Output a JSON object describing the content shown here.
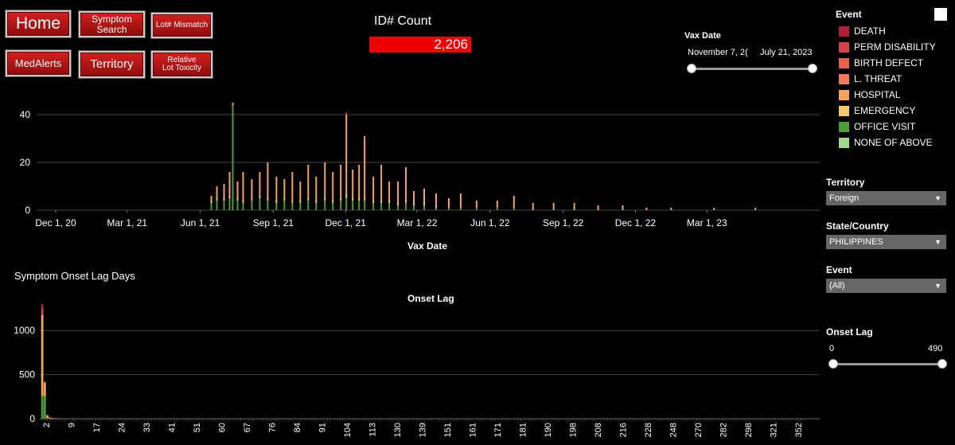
{
  "nav": {
    "home": "Home",
    "symptom_search": "Symptom\nSearch",
    "lot_mismatch": "Lot# Mismatch",
    "medalerts": "MedAlerts",
    "territory": "Territory",
    "relative_lot_toxicity": "Relative\nLot Toxicity"
  },
  "count": {
    "label": "ID# Count",
    "value": "2,206"
  },
  "vax_date_filter": {
    "label": "Vax Date",
    "start": "November 7, 2(",
    "end": "July 21, 2023"
  },
  "legend": {
    "title": "Event",
    "items": [
      {
        "label": "DEATH",
        "color": "#b01f3a"
      },
      {
        "label": "PERM DISABILITY",
        "color": "#d2434b"
      },
      {
        "label": "BIRTH DEFECT",
        "color": "#e8604e"
      },
      {
        "label": "L. THREAT",
        "color": "#f0795f"
      },
      {
        "label": "HOSPITAL",
        "color": "#f5a35e"
      },
      {
        "label": "EMERGENCY",
        "color": "#f3c96d"
      },
      {
        "label": "OFFICE VISIT",
        "color": "#4f9a3a"
      },
      {
        "label": "NONE OF ABOVE",
        "color": "#9fd88f"
      }
    ]
  },
  "filters": {
    "territory": {
      "label": "Territory",
      "value": "Foreign"
    },
    "state_country": {
      "label": "State/Country",
      "value": "PHILIPPINES"
    },
    "event": {
      "label": "Event",
      "value": "(All)"
    },
    "onset_lag": {
      "label": "Onset Lag",
      "min": "0",
      "max": "490"
    }
  },
  "chart_data": [
    {
      "type": "bar",
      "title": "",
      "xlabel": "Vax Date",
      "ylabel": "",
      "ylim": [
        0,
        48
      ],
      "y_ticks": [
        "0",
        "20",
        "40"
      ],
      "x_ticks": [
        "Dec 1, 20",
        "Mar 1, 21",
        "Jun 1, 21",
        "Sep 1, 21",
        "Dec 1, 21",
        "Mar 1, 22",
        "Jun 1, 22",
        "Sep 1, 22",
        "Dec 1, 22",
        "Mar 1, 23"
      ],
      "x_range": [
        "2020-11-07",
        "2023-07-21"
      ],
      "grid": true,
      "stacked": true,
      "series_order": [
        "OFFICE VISIT",
        "EMERGENCY",
        "HOSPITAL",
        "DEATH"
      ],
      "bars": [
        {
          "x": "2021-06-15",
          "values": [
            3,
            1,
            2,
            0
          ]
        },
        {
          "x": "2021-06-22",
          "values": [
            4,
            1,
            5,
            0
          ]
        },
        {
          "x": "2021-07-01",
          "values": [
            4,
            1,
            6,
            0
          ]
        },
        {
          "x": "2021-07-08",
          "values": [
            5,
            1,
            10,
            0
          ]
        },
        {
          "x": "2021-07-12",
          "values": [
            44,
            0,
            1,
            0
          ]
        },
        {
          "x": "2021-07-18",
          "values": [
            4,
            1,
            7,
            0
          ]
        },
        {
          "x": "2021-07-25",
          "values": [
            3,
            1,
            12,
            0
          ]
        },
        {
          "x": "2021-08-05",
          "values": [
            4,
            1,
            8,
            0
          ]
        },
        {
          "x": "2021-08-15",
          "values": [
            5,
            1,
            10,
            0
          ]
        },
        {
          "x": "2021-08-25",
          "values": [
            4,
            1,
            15,
            0
          ]
        },
        {
          "x": "2021-09-05",
          "values": [
            3,
            1,
            10,
            0
          ]
        },
        {
          "x": "2021-09-15",
          "values": [
            4,
            1,
            8,
            0
          ]
        },
        {
          "x": "2021-09-25",
          "values": [
            3,
            1,
            12,
            0
          ]
        },
        {
          "x": "2021-10-05",
          "values": [
            3,
            1,
            8,
            0
          ]
        },
        {
          "x": "2021-10-15",
          "values": [
            4,
            1,
            14,
            0
          ]
        },
        {
          "x": "2021-10-25",
          "values": [
            3,
            1,
            10,
            0
          ]
        },
        {
          "x": "2021-11-05",
          "values": [
            4,
            1,
            15,
            0
          ]
        },
        {
          "x": "2021-11-15",
          "values": [
            3,
            1,
            12,
            0
          ]
        },
        {
          "x": "2021-11-25",
          "values": [
            4,
            1,
            14,
            0
          ]
        },
        {
          "x": "2021-12-02",
          "values": [
            5,
            2,
            33,
            1
          ]
        },
        {
          "x": "2021-12-10",
          "values": [
            4,
            1,
            12,
            0
          ]
        },
        {
          "x": "2021-12-18",
          "values": [
            4,
            1,
            14,
            0
          ]
        },
        {
          "x": "2021-12-25",
          "values": [
            4,
            1,
            26,
            0
          ]
        },
        {
          "x": "2022-01-05",
          "values": [
            3,
            1,
            10,
            0
          ]
        },
        {
          "x": "2022-01-15",
          "values": [
            3,
            1,
            15,
            0
          ]
        },
        {
          "x": "2022-01-25",
          "values": [
            3,
            1,
            8,
            0
          ]
        },
        {
          "x": "2022-02-05",
          "values": [
            2,
            1,
            9,
            0
          ]
        },
        {
          "x": "2022-02-15",
          "values": [
            3,
            1,
            14,
            0
          ]
        },
        {
          "x": "2022-02-25",
          "values": [
            2,
            1,
            5,
            0
          ]
        },
        {
          "x": "2022-03-10",
          "values": [
            2,
            1,
            6,
            0
          ]
        },
        {
          "x": "2022-03-25",
          "values": [
            1,
            1,
            5,
            0
          ]
        },
        {
          "x": "2022-04-10",
          "values": [
            1,
            0,
            4,
            0
          ]
        },
        {
          "x": "2022-04-25",
          "values": [
            1,
            0,
            6,
            0
          ]
        },
        {
          "x": "2022-05-15",
          "values": [
            1,
            0,
            3,
            0
          ]
        },
        {
          "x": "2022-06-10",
          "values": [
            1,
            0,
            3,
            0
          ]
        },
        {
          "x": "2022-07-01",
          "values": [
            1,
            0,
            5,
            0
          ]
        },
        {
          "x": "2022-07-25",
          "values": [
            0,
            0,
            3,
            0
          ]
        },
        {
          "x": "2022-08-20",
          "values": [
            0,
            0,
            3,
            0
          ]
        },
        {
          "x": "2022-09-15",
          "values": [
            0,
            0,
            3,
            0
          ]
        },
        {
          "x": "2022-10-15",
          "values": [
            0,
            0,
            2,
            0
          ]
        },
        {
          "x": "2022-11-15",
          "values": [
            0,
            0,
            2,
            0
          ]
        },
        {
          "x": "2022-12-15",
          "values": [
            0,
            0,
            1,
            0
          ]
        },
        {
          "x": "2023-01-15",
          "values": [
            0,
            0,
            1,
            0
          ]
        },
        {
          "x": "2023-03-10",
          "values": [
            0,
            0,
            1,
            0
          ]
        },
        {
          "x": "2023-05-01",
          "values": [
            0,
            0,
            1,
            0
          ]
        }
      ]
    },
    {
      "type": "bar",
      "title": "Symptom Onset Lag Days",
      "subtitle": "Onset Lag",
      "xlabel": "",
      "ylabel": "",
      "ylim": [
        0,
        1300
      ],
      "y_ticks": [
        "0",
        "500",
        "1000"
      ],
      "x_ticks": [
        "2",
        "9",
        "17",
        "24",
        "33",
        "41",
        "51",
        "60",
        "67",
        "76",
        "84",
        "91",
        "104",
        "113",
        "130",
        "139",
        "151",
        "161",
        "171",
        "181",
        "190",
        "198",
        "208",
        "216",
        "228",
        "248",
        "270",
        "282",
        "298",
        "321",
        "352"
      ],
      "grid": true,
      "stacked": true,
      "series_order": [
        "OFFICE VISIT",
        "HOSPITAL",
        "PERM DISABILITY",
        "DEATH"
      ],
      "bars": [
        {
          "x": 0,
          "values": [
            260,
            920,
            80,
            40
          ]
        },
        {
          "x": 1,
          "values": [
            250,
            160,
            10,
            0
          ]
        },
        {
          "x": 2,
          "values": [
            10,
            30,
            0,
            0
          ]
        },
        {
          "x": 3,
          "values": [
            5,
            10,
            0,
            0
          ]
        },
        {
          "x": 4,
          "values": [
            2,
            6,
            0,
            0
          ]
        },
        {
          "x": 5,
          "values": [
            1,
            4,
            0,
            0
          ]
        },
        {
          "x": 6,
          "values": [
            1,
            3,
            0,
            0
          ]
        },
        {
          "x": 7,
          "values": [
            0,
            3,
            0,
            0
          ]
        },
        {
          "x": 9,
          "values": [
            0,
            2,
            0,
            0
          ]
        },
        {
          "x": 12,
          "values": [
            0,
            2,
            0,
            0
          ]
        },
        {
          "x": 17,
          "values": [
            0,
            1,
            0,
            0
          ]
        }
      ]
    }
  ]
}
